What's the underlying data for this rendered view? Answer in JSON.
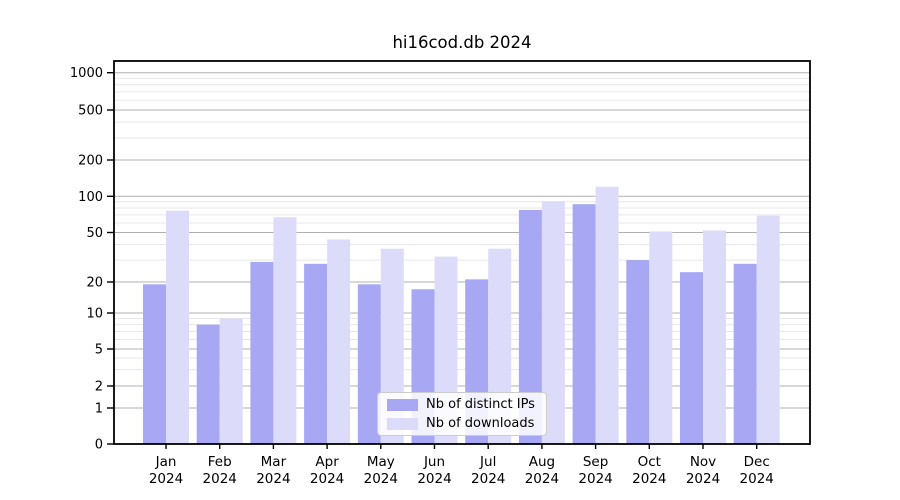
{
  "chart_data": {
    "type": "bar",
    "title": "hi16cod.db 2024",
    "categories": [
      "Jan",
      "Feb",
      "Mar",
      "Apr",
      "May",
      "Jun",
      "Jul",
      "Aug",
      "Sep",
      "Oct",
      "Nov",
      "Dec"
    ],
    "category_year": "2024",
    "series": [
      {
        "name": "Nb of distinct IPs",
        "color": "#a7a7f3",
        "values": [
          19,
          8,
          29,
          28,
          19,
          17,
          21,
          77,
          86,
          30,
          24,
          28
        ]
      },
      {
        "name": "Nb of downloads",
        "color": "#dcdcfa",
        "values": [
          76,
          9,
          67,
          44,
          37,
          32,
          37,
          91,
          120,
          51,
          52,
          69
        ]
      }
    ],
    "yticks": [
      0,
      1,
      2,
      5,
      10,
      20,
      50,
      100,
      200,
      500,
      1000
    ],
    "yticks_minor": [
      3,
      4,
      6,
      7,
      8,
      9,
      30,
      40,
      60,
      70,
      80,
      90,
      300,
      400,
      600,
      700,
      800,
      900
    ],
    "ylim": [
      0,
      1300
    ],
    "xlabel": "",
    "ylabel": "",
    "scale": "symlog",
    "grid": true,
    "legend_position": "lower center"
  },
  "colors": {
    "background": "#ffffff",
    "axis": "#000000",
    "grid_major": "#b0b0b0",
    "grid_minor": "#e7e7e7",
    "legend_border": "#cccccc",
    "series_distinct_ips": "#a7a7f3",
    "series_downloads": "#dcdcfa"
  }
}
